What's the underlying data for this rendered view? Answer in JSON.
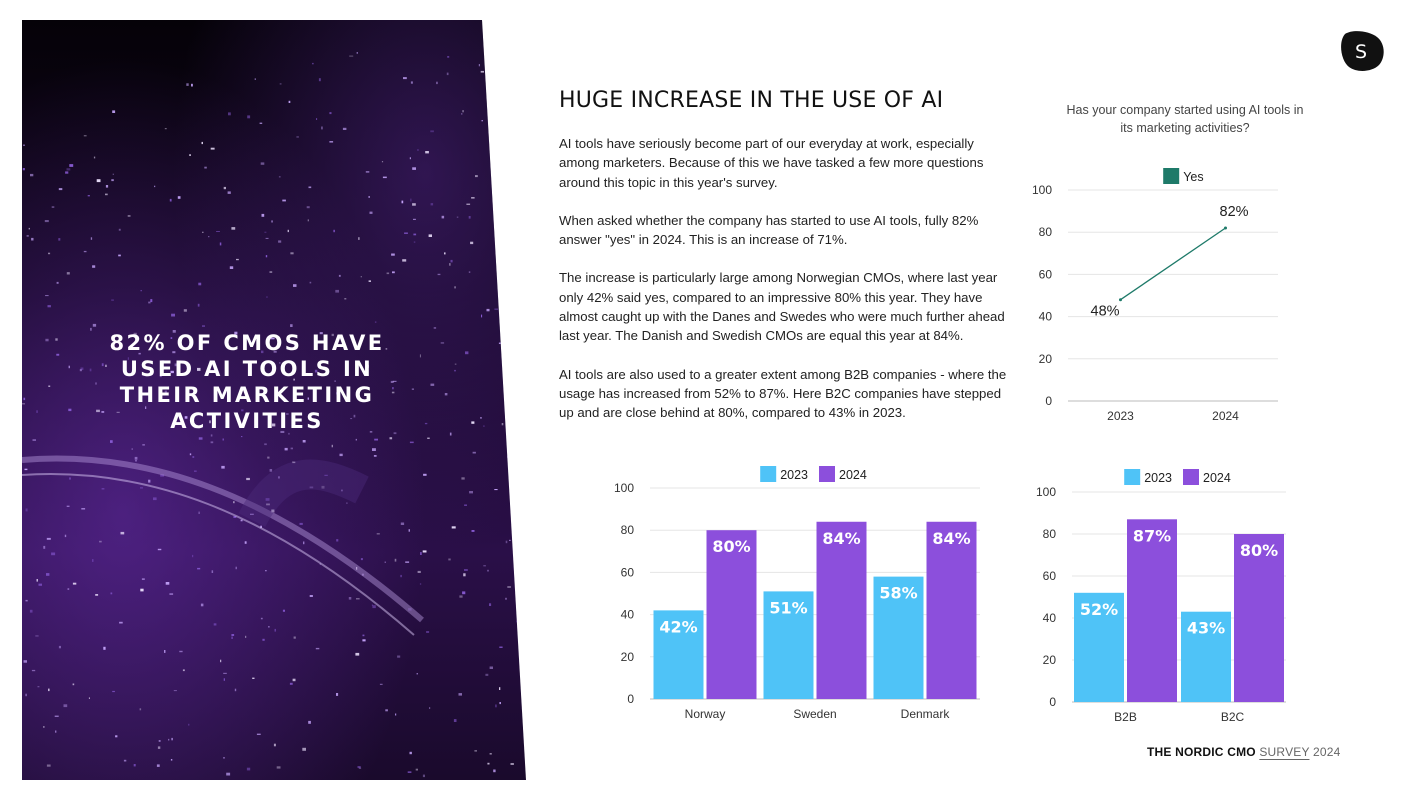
{
  "hero": {
    "title": "82% OF CMOS HAVE USED AI TOOLS IN THEIR MARKETING ACTIVITIES"
  },
  "logo": {
    "letter": "S"
  },
  "heading": "HUGE INCREASE IN THE USE OF AI",
  "paragraphs": [
    "AI tools have seriously become part of our everyday at work, especially among marketers. Because of this we have tasked a few more questions around this topic in this year's survey.",
    "When asked whether the company has started to use AI tools, fully 82% answer \"yes\" in 2024. This is an increase of 71%.",
    "The increase is particularly large among Norwegian CMOs, where last year only 42% said yes, compared to an impressive 80% this year. They have almost caught up with the Danes and Swedes who were much further ahead last year. The Danish and Swedish CMOs are equal this year at 84%.",
    "AI tools are also used to a greater extent among B2B companies - where the usage has increased from 52% to 87%. Here B2C companies have stepped up and are close behind at 80%, compared to 43% in 2023."
  ],
  "footer": {
    "brand": "THE NORDIC CMO",
    "word": "SURVEY",
    "year": "2024"
  },
  "colors": {
    "c2023": "#4fc3f7",
    "c2024": "#8c4fdc",
    "yes": "#1e7a69",
    "grid": "#e5e5e5",
    "axis": "#bbbbbb"
  },
  "chart_data": [
    {
      "id": "adoption",
      "type": "line",
      "title": "Has your company started using AI tools in its marketing activities?",
      "categories": [
        "2023",
        "2024"
      ],
      "series": [
        {
          "name": "Yes",
          "values": [
            48,
            82
          ],
          "labels": [
            "48%",
            "82%"
          ]
        }
      ],
      "ylim": [
        0,
        100
      ],
      "yticks": [
        "0",
        "20",
        "40",
        "60",
        "80",
        "100"
      ],
      "grid": true,
      "legend": "top-center"
    },
    {
      "id": "countries",
      "type": "bar",
      "categories": [
        "Norway",
        "Sweden",
        "Denmark"
      ],
      "series": [
        {
          "name": "2023",
          "values": [
            42,
            51,
            58
          ],
          "labels": [
            "42%",
            "51%",
            "58%"
          ]
        },
        {
          "name": "2024",
          "values": [
            80,
            84,
            84
          ],
          "labels": [
            "80%",
            "84%",
            "84%"
          ]
        }
      ],
      "ylim": [
        0,
        100
      ],
      "yticks": [
        "0",
        "20",
        "40",
        "60",
        "80",
        "100"
      ],
      "grid": true,
      "legend": "top-center"
    },
    {
      "id": "segments",
      "type": "bar",
      "categories": [
        "B2B",
        "B2C"
      ],
      "series": [
        {
          "name": "2023",
          "values": [
            52,
            43
          ],
          "labels": [
            "52%",
            "43%"
          ]
        },
        {
          "name": "2024",
          "values": [
            87,
            80
          ],
          "labels": [
            "87%",
            "80%"
          ]
        }
      ],
      "ylim": [
        0,
        100
      ],
      "yticks": [
        "0",
        "20",
        "40",
        "60",
        "80",
        "100"
      ],
      "grid": true,
      "legend": "top-center"
    }
  ]
}
